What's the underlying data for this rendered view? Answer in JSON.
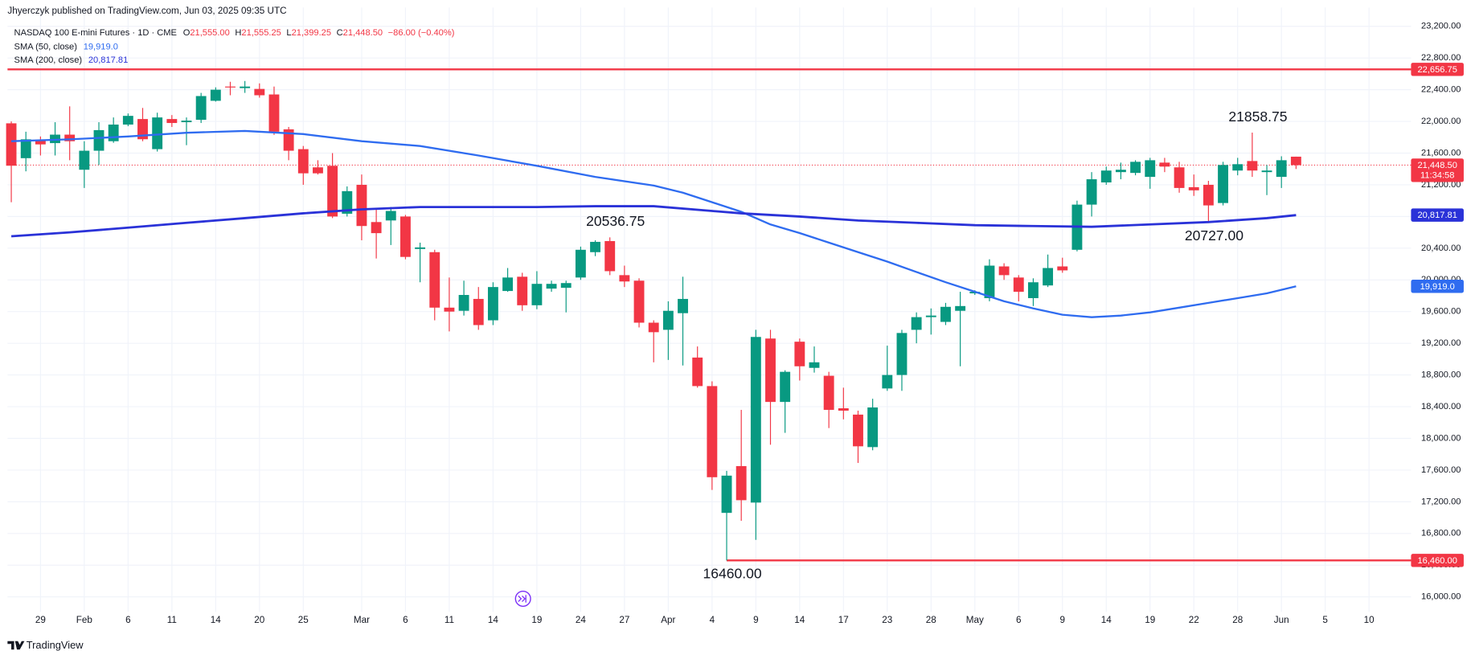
{
  "header": {
    "publisher": "Jhyerczyk published on TradingView.com, Jun 03, 2025 09:35 UTC"
  },
  "legend": {
    "symbol": "NASDAQ 100 E-mini Futures · 1D · CME",
    "ohlc": [
      {
        "key": "O",
        "value": "21,555.00"
      },
      {
        "key": "H",
        "value": "21,555.25"
      },
      {
        "key": "L",
        "value": "21,399.25"
      },
      {
        "key": "C",
        "value": "21,448.50"
      }
    ],
    "change": "−86.00 (−0.40%)"
  },
  "chart_data": {
    "type": "candlestick",
    "categories": [
      null,
      null,
      "29",
      null,
      null,
      "Feb",
      null,
      null,
      "6",
      null,
      null,
      "11",
      null,
      null,
      "14",
      null,
      null,
      "20",
      null,
      null,
      "25",
      null,
      null,
      null,
      "Mar",
      null,
      null,
      "6",
      null,
      null,
      "11",
      null,
      null,
      "14",
      null,
      null,
      "19",
      null,
      null,
      "24",
      null,
      null,
      "27",
      null,
      null,
      "Apr",
      null,
      null,
      "4",
      null,
      null,
      "9",
      null,
      null,
      "14",
      null,
      null,
      "17",
      null,
      null,
      "23",
      null,
      null,
      "28",
      null,
      null,
      "May",
      null,
      null,
      "6",
      null,
      null,
      "9",
      null,
      null,
      "14",
      null,
      null,
      "19",
      null,
      null,
      "22",
      null,
      null,
      "28",
      null,
      null,
      "Jun",
      null,
      null,
      "5",
      null,
      null,
      "10",
      null
    ],
    "open": [
      21976,
      21536,
      21760,
      21726,
      21833,
      21390,
      21630,
      21750,
      21960,
      22030,
      21650,
      22030,
      21990,
      22020,
      22260,
      22440,
      22420,
      22410,
      22340,
      21900,
      21650,
      21420,
      21440,
      20835,
      21200,
      20730,
      20750,
      20800,
      20390,
      20350,
      19650,
      19610,
      19760,
      19490,
      19860,
      20040,
      19680,
      19890,
      19900,
      20030,
      20350,
      20490,
      20060,
      19990,
      19460,
      19370,
      19580,
      19020,
      18660,
      17060,
      17650,
      17190,
      19260,
      18460,
      19220,
      18890,
      18790,
      18380,
      18300,
      17890,
      18630,
      18800,
      19370,
      19530,
      19470,
      19610,
      19830,
      19770,
      20170,
      20030,
      19770,
      19930,
      20170,
      20380,
      20950,
      21230,
      21360,
      21350,
      21300,
      21480,
      21420,
      21170,
      21200,
      20970,
      21380,
      21500,
      21360,
      21300,
      21555,
      null,
      null,
      null,
      null,
      null,
      null
    ],
    "high": [
      22000,
      21870,
      21810,
      21990,
      22190,
      21750,
      21990,
      22050,
      22100,
      22170,
      22110,
      22080,
      22050,
      22360,
      22430,
      22500,
      22510,
      22480,
      22440,
      21930,
      21690,
      21510,
      21600,
      21180,
      21330,
      20900,
      20920,
      20820,
      20470,
      20380,
      20030,
      19990,
      19910,
      19970,
      20150,
      20090,
      20110,
      19990,
      19990,
      20420,
      20500,
      20536.75,
      20180,
      20020,
      19490,
      19730,
      20040,
      19160,
      18720,
      17590,
      18360,
      19370,
      19370,
      18860,
      19260,
      19160,
      18840,
      18640,
      18350,
      18500,
      19170,
      19370,
      19590,
      19640,
      19710,
      19850,
      19870,
      20260,
      20210,
      20060,
      20020,
      20320,
      20280,
      21000,
      21360,
      21430,
      21480,
      21510,
      21540,
      21540,
      21490,
      21330,
      21250,
      21490,
      21540,
      21858.75,
      21450,
      21560,
      21555.25,
      null,
      null,
      null,
      null,
      null,
      null
    ],
    "low": [
      20980,
      21370,
      21570,
      21570,
      21510,
      21160,
      21450,
      21730,
      21940,
      21750,
      21620,
      21930,
      21700,
      21980,
      22250,
      22330,
      22360,
      22300,
      21830,
      21510,
      21200,
      21330,
      20780,
      20800,
      20500,
      20270,
      20440,
      20260,
      19970,
      19490,
      19350,
      19550,
      19370,
      19430,
      19850,
      19610,
      19630,
      19850,
      19590,
      20000,
      20300,
      20060,
      19910,
      19400,
      18960,
      18990,
      18920,
      18640,
      17350,
      16460,
      16960,
      16720,
      17920,
      18070,
      18730,
      18830,
      18130,
      18240,
      17690,
      17850,
      18600,
      18600,
      19200,
      19310,
      19430,
      18910,
      19810,
      19730,
      20000,
      19730,
      19670,
      19910,
      20090,
      20360,
      20800,
      21200,
      21270,
      21320,
      21150,
      21360,
      21100,
      21060,
      20727,
      20940,
      21320,
      21300,
      21070,
      21160,
      21399.25,
      null,
      null,
      null,
      null,
      null,
      null
    ],
    "close": [
      21441,
      21774,
      21710,
      21833,
      21750,
      21630,
      21890,
      21960,
      22070,
      21775,
      22050,
      21980,
      22010,
      22320,
      22400,
      22430,
      22440,
      22330,
      21870,
      21630,
      21345,
      21345,
      20800,
      21120,
      20680,
      20590,
      20870,
      20290,
      20410,
      19650,
      19600,
      19810,
      19430,
      19910,
      20030,
      19680,
      19950,
      19950,
      19960,
      20380,
      20480,
      20110,
      19980,
      19460,
      19340,
      19610,
      19760,
      18660,
      17510,
      17530,
      17220,
      19280,
      18460,
      18840,
      18910,
      18960,
      18360,
      18350,
      17900,
      18390,
      18800,
      19330,
      19530,
      19550,
      19660,
      19670,
      19850,
      20180,
      20060,
      19850,
      19970,
      20150,
      20120,
      20950,
      21270,
      21380,
      21390,
      21490,
      21510,
      21430,
      21160,
      21130,
      20940,
      21450,
      21460,
      21380,
      21380,
      21510,
      21448.5,
      null,
      null,
      null,
      null,
      null,
      null
    ],
    "up_color": "#089981",
    "down_color": "#f23645",
    "series": [
      {
        "name": "SMA (50, close)",
        "color": "#2f6cf0",
        "last_label": "19,919.0",
        "x": [
          0,
          4,
          8,
          12,
          16,
          20,
          24,
          28,
          32,
          36,
          40,
          44,
          46,
          48,
          50,
          52,
          54,
          56,
          58,
          60,
          62,
          64,
          66,
          68,
          70,
          72,
          74,
          76,
          78,
          80,
          82,
          84,
          86,
          88
        ],
        "values": [
          21750,
          21774,
          21809,
          21857,
          21880,
          21840,
          21750,
          21690,
          21570,
          21440,
          21300,
          21190,
          21100,
          20980,
          20860,
          20700,
          20590,
          20470,
          20350,
          20230,
          20100,
          19970,
          19850,
          19730,
          19640,
          19560,
          19530,
          19550,
          19590,
          19650,
          19710,
          19770,
          19830,
          19919
        ]
      },
      {
        "name": "SMA (200, close)",
        "color": "#2a32d8",
        "last_label": "20,817.81",
        "x": [
          0,
          4,
          8,
          12,
          16,
          20,
          24,
          28,
          32,
          36,
          40,
          44,
          48,
          50,
          54,
          58,
          62,
          66,
          70,
          74,
          78,
          82,
          86,
          88
        ],
        "values": [
          20550,
          20600,
          20660,
          20720,
          20780,
          20840,
          20890,
          20920,
          20920,
          20920,
          20930,
          20930,
          20870,
          20840,
          20800,
          20750,
          20720,
          20690,
          20680,
          20670,
          20700,
          20730,
          20780,
          20817.81
        ]
      }
    ],
    "hlines": [
      {
        "value": 22656.75,
        "label": "22,656.75",
        "color": "#f23645"
      },
      {
        "value": 16460,
        "label": "16,460.00",
        "color": "#f23645"
      }
    ],
    "last_price": {
      "value": 21448.5,
      "label": "21,448.50",
      "countdown": "11:34:58",
      "color": "#f23645"
    },
    "annotations": [
      {
        "label": "21858.75",
        "value": 21858.75
      },
      {
        "label": "20536.75",
        "value": 20536.75
      },
      {
        "label": "20727.00",
        "value": 20727
      },
      {
        "label": "16460.00",
        "value": 16460
      }
    ],
    "ylim": [
      15810,
      23437
    ],
    "yticks": [
      {
        "value": 16000,
        "label": "16,000.00"
      },
      {
        "value": 16400,
        "label": "16,400.00"
      },
      {
        "value": 16800,
        "label": "16,800.00"
      },
      {
        "value": 17200,
        "label": "17,200.00"
      },
      {
        "value": 17600,
        "label": "17,600.00"
      },
      {
        "value": 18000,
        "label": "18,000.00"
      },
      {
        "value": 18400,
        "label": "18,400.00"
      },
      {
        "value": 18800,
        "label": "18,800.00"
      },
      {
        "value": 19200,
        "label": "19,200.00"
      },
      {
        "value": 19600,
        "label": "19,600.00"
      },
      {
        "value": 20000,
        "label": "20,000.00"
      },
      {
        "value": 20400,
        "label": "20,400.00"
      },
      {
        "value": 20800,
        "label": "20,800.00"
      },
      {
        "value": 21200,
        "label": "21,200.00"
      },
      {
        "value": 21600,
        "label": "21,600.00"
      },
      {
        "value": 22000,
        "label": "22,000.00"
      },
      {
        "value": 22400,
        "label": "22,400.00"
      },
      {
        "value": 22800,
        "label": "22,800.00"
      },
      {
        "value": 23200,
        "label": "23,200.00"
      }
    ],
    "grid": true
  },
  "footer": {
    "brand": "TradingView"
  }
}
